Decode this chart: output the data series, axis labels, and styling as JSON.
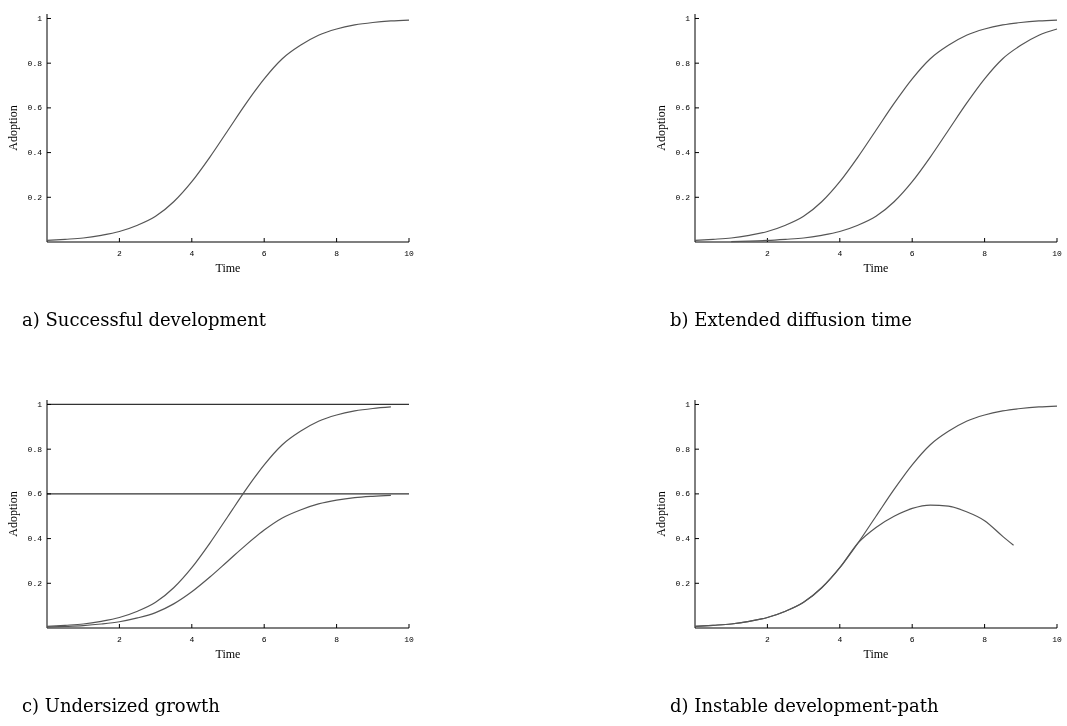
{
  "chart_data": [
    {
      "type": "line",
      "title": "a) Successful development",
      "xlabel": "Time",
      "ylabel": "Adoption",
      "xlim": [
        0,
        10
      ],
      "ylim": [
        0,
        1.02
      ],
      "xticks": [
        2,
        4,
        6,
        8,
        10
      ],
      "yticks": [
        0.2,
        0.4,
        0.6,
        0.8,
        1
      ],
      "grid": false,
      "series": [
        {
          "color": "#555555",
          "x": [
            0,
            0.5,
            1,
            1.5,
            2,
            2.5,
            3,
            3.5,
            4,
            4.5,
            5,
            5.5,
            6,
            6.5,
            7,
            7.5,
            8,
            8.5,
            9,
            9.5,
            10
          ],
          "values": [
            0.007,
            0.012,
            0.018,
            0.03,
            0.047,
            0.075,
            0.115,
            0.18,
            0.27,
            0.38,
            0.5,
            0.62,
            0.73,
            0.82,
            0.88,
            0.925,
            0.953,
            0.971,
            0.982,
            0.989,
            0.993
          ]
        }
      ]
    },
    {
      "type": "line",
      "title": "b) Extended diffusion time",
      "xlabel": "Time",
      "ylabel": "Adoption",
      "xlim": [
        0,
        10
      ],
      "ylim": [
        0,
        1.02
      ],
      "xticks": [
        2,
        4,
        6,
        8,
        10
      ],
      "yticks": [
        0.2,
        0.4,
        0.6,
        0.8,
        1
      ],
      "grid": false,
      "series": [
        {
          "color": "#555555",
          "x": [
            0,
            0.5,
            1,
            1.5,
            2,
            2.5,
            3,
            3.5,
            4,
            4.5,
            5,
            5.5,
            6,
            6.5,
            7,
            7.5,
            8,
            8.5,
            9,
            9.5,
            10
          ],
          "values": [
            0.007,
            0.012,
            0.018,
            0.03,
            0.047,
            0.075,
            0.115,
            0.18,
            0.27,
            0.38,
            0.5,
            0.62,
            0.73,
            0.82,
            0.88,
            0.925,
            0.953,
            0.971,
            0.982,
            0.989,
            0.993
          ]
        },
        {
          "color": "#555555",
          "x": [
            1,
            1.5,
            2,
            2.5,
            3,
            3.5,
            4,
            4.5,
            5,
            5.5,
            6,
            6.5,
            7,
            7.5,
            8,
            8.5,
            9,
            9.5,
            10
          ],
          "values": [
            0.002,
            0.004,
            0.007,
            0.012,
            0.018,
            0.03,
            0.047,
            0.075,
            0.115,
            0.18,
            0.27,
            0.38,
            0.5,
            0.62,
            0.73,
            0.82,
            0.88,
            0.925,
            0.953
          ]
        }
      ]
    },
    {
      "type": "line",
      "title": "c) Undersized growth",
      "xlabel": "Time",
      "ylabel": "Adoption",
      "xlim": [
        0,
        10
      ],
      "ylim": [
        0,
        1.02
      ],
      "xticks": [
        2,
        4,
        6,
        8,
        10
      ],
      "yticks": [
        0.2,
        0.4,
        0.6,
        0.8,
        1
      ],
      "grid": false,
      "ref_lines": [
        {
          "axis": "y",
          "value": 1,
          "color": "#333333"
        },
        {
          "axis": "y",
          "value": 0.6,
          "color": "#333333"
        }
      ],
      "series": [
        {
          "color": "#555555",
          "x": [
            0,
            0.5,
            1,
            1.5,
            2,
            2.5,
            3,
            3.5,
            4,
            4.5,
            5,
            5.5,
            6,
            6.5,
            7,
            7.5,
            8,
            8.5,
            9,
            9.5
          ],
          "values": [
            0.007,
            0.012,
            0.018,
            0.03,
            0.047,
            0.075,
            0.115,
            0.18,
            0.27,
            0.38,
            0.5,
            0.62,
            0.73,
            0.82,
            0.88,
            0.925,
            0.953,
            0.971,
            0.982,
            0.989
          ]
        },
        {
          "color": "#555555",
          "x": [
            0,
            0.5,
            1,
            1.5,
            2,
            2.5,
            3,
            3.5,
            4,
            4.5,
            5,
            5.5,
            6,
            6.5,
            7,
            7.5,
            8,
            8.5,
            9,
            9.5
          ],
          "values": [
            0.004,
            0.007,
            0.011,
            0.018,
            0.028,
            0.045,
            0.069,
            0.108,
            0.162,
            0.228,
            0.3,
            0.372,
            0.438,
            0.492,
            0.528,
            0.555,
            0.572,
            0.583,
            0.589,
            0.593
          ]
        }
      ]
    },
    {
      "type": "line",
      "title": "d) Instable development-path",
      "xlabel": "Time",
      "ylabel": "Adoption",
      "xlim": [
        0,
        10
      ],
      "ylim": [
        0,
        1.02
      ],
      "xticks": [
        2,
        4,
        6,
        8,
        10
      ],
      "yticks": [
        0.2,
        0.4,
        0.6,
        0.8,
        1
      ],
      "grid": false,
      "series": [
        {
          "color": "#555555",
          "x": [
            0,
            0.5,
            1,
            1.5,
            2,
            2.5,
            3,
            3.5,
            4,
            4.5,
            5,
            5.5,
            6,
            6.5,
            7,
            7.5,
            8,
            8.5,
            9,
            9.5,
            10
          ],
          "values": [
            0.007,
            0.012,
            0.018,
            0.03,
            0.047,
            0.075,
            0.115,
            0.18,
            0.27,
            0.38,
            0.5,
            0.62,
            0.73,
            0.82,
            0.88,
            0.925,
            0.953,
            0.971,
            0.982,
            0.989,
            0.993
          ]
        },
        {
          "color": "#555555",
          "x": [
            0,
            0.5,
            1,
            1.5,
            2,
            2.5,
            3,
            3.5,
            4,
            4.5,
            5,
            5.5,
            6,
            6.5,
            7,
            7.5,
            8,
            8.5,
            8.8
          ],
          "values": [
            0.007,
            0.012,
            0.018,
            0.03,
            0.047,
            0.075,
            0.115,
            0.18,
            0.27,
            0.38,
            0.45,
            0.5,
            0.535,
            0.55,
            0.545,
            0.52,
            0.48,
            0.41,
            0.37
          ]
        }
      ]
    }
  ]
}
